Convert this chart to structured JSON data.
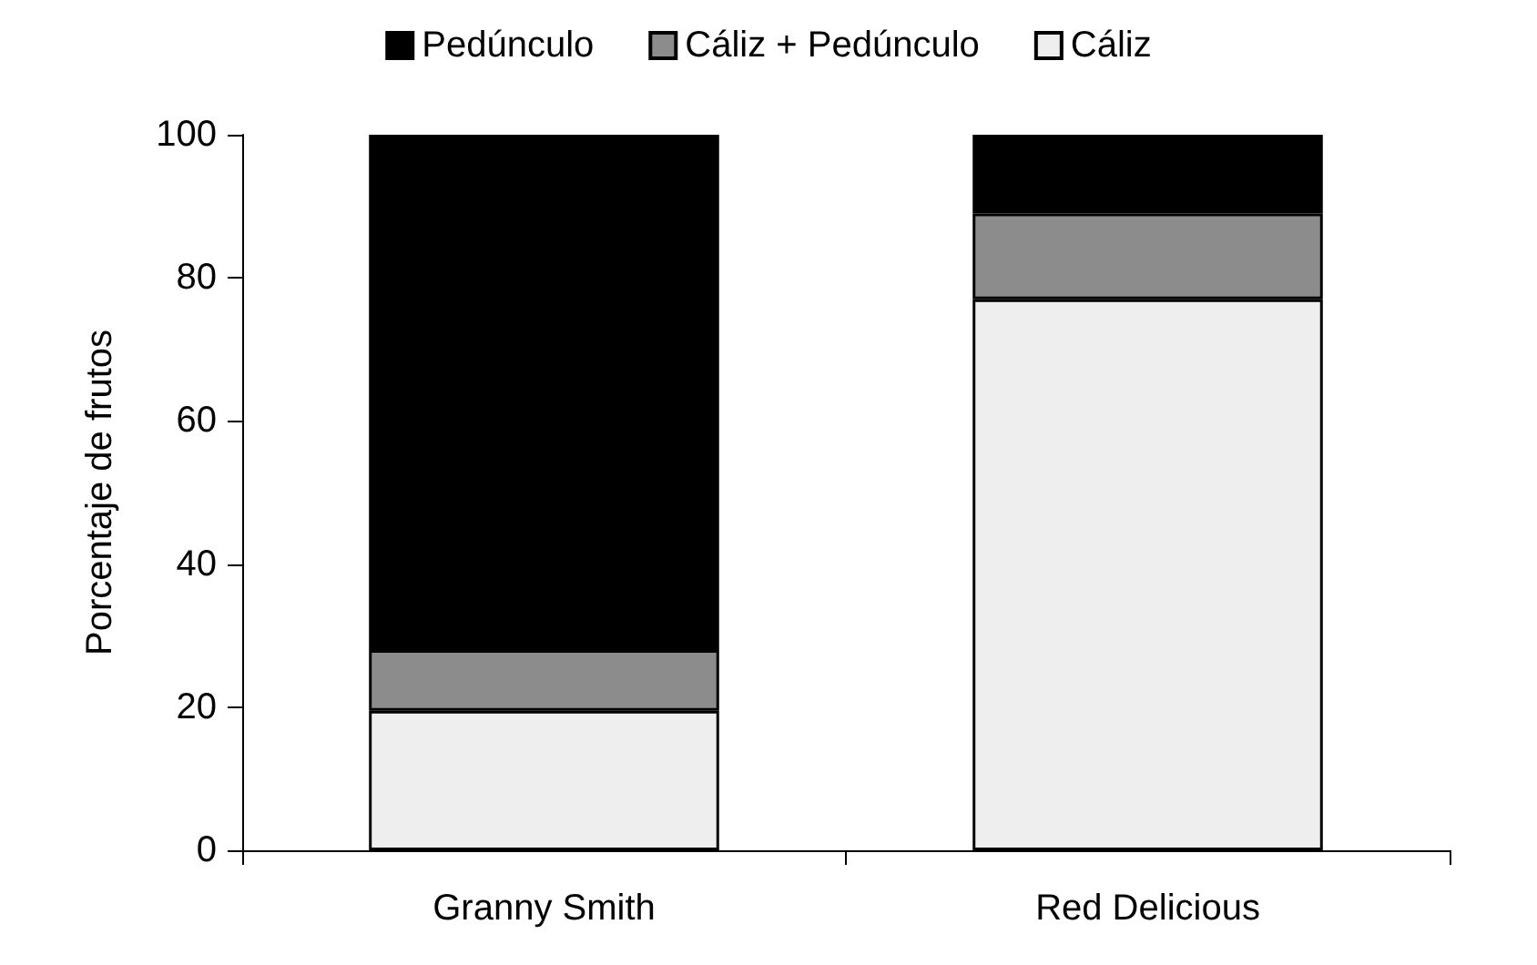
{
  "chart_data": {
    "type": "bar",
    "stacked": true,
    "ylabel": "Porcentaje de frutos",
    "categories": [
      "Granny Smith",
      "Red Delicious"
    ],
    "series": [
      {
        "name": "Cáliz",
        "color": "#eeeeee",
        "values": [
          19.5,
          77
        ]
      },
      {
        "name": "Cáliz + Pedúnculo",
        "color": "#8c8c8c",
        "values": [
          8.5,
          12
        ]
      },
      {
        "name": "Pedúnculo",
        "color": "#000000",
        "values": [
          72,
          11
        ]
      }
    ],
    "ylim": [
      0,
      100
    ],
    "yticks": [
      0,
      20,
      40,
      60,
      80,
      100
    ],
    "grid": false,
    "legend": "top"
  }
}
